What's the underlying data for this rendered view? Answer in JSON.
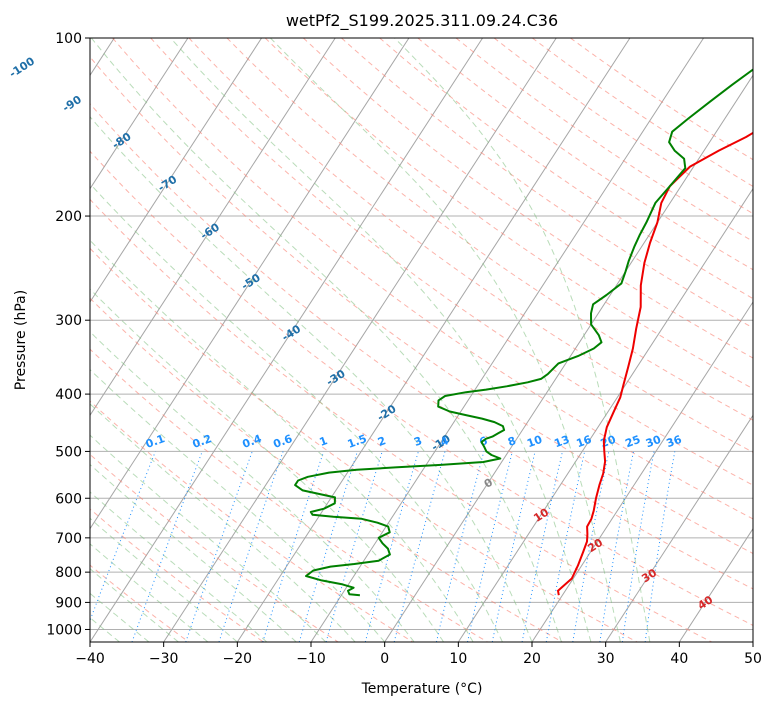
{
  "chart_data": {
    "type": "line",
    "title": "wetPf2_S199.2025.311.09.24.C36",
    "xlabel": "Temperature (°C)",
    "ylabel": "Pressure (hPa)",
    "xlim": [
      -40,
      50
    ],
    "ylim": [
      1050,
      100
    ],
    "y_scale": "log",
    "grid": true,
    "x_ticks": [
      "−40",
      "−30",
      "−20",
      "−10",
      "0",
      "10",
      "20",
      "30",
      "40",
      "50"
    ],
    "y_ticks": [
      "100",
      "200",
      "300",
      "400",
      "500",
      "600",
      "700",
      "800",
      "900",
      "1000"
    ],
    "isotherm_labels": [
      "-100",
      "-90",
      "-80",
      "-70",
      "-60",
      "-50",
      "-40",
      "-30",
      "-20",
      "-10",
      "0",
      "10",
      "20",
      "30",
      "40"
    ],
    "mixing_ratio_labels": [
      "0.1",
      "0.2",
      "0.4",
      "0.6",
      "1",
      "1.5",
      "2",
      "3",
      "4",
      "6",
      "8",
      "10",
      "13",
      "16",
      "20",
      "25",
      "30",
      "36"
    ],
    "colors": {
      "temperature": "#ee0000",
      "dewpoint": "#008000",
      "isotherm_label": "#1f6fa8",
      "isotherm_label_warm": "#d62728",
      "mixing_ratio": "#1e90ff",
      "dry_adiabat": "#fa8072",
      "moist_adiabat": "#7fbf7f",
      "zero_isotherm": "#888888"
    },
    "series": [
      {
        "key": "temperature",
        "points": [
          [
            19.5,
            875
          ],
          [
            19.0,
            860
          ],
          [
            19.8,
            820
          ],
          [
            19.5,
            780
          ],
          [
            19.0,
            740
          ],
          [
            18.6,
            710
          ],
          [
            18.0,
            690
          ],
          [
            17.3,
            670
          ],
          [
            17.2,
            650
          ],
          [
            16.8,
            630
          ],
          [
            16.0,
            600
          ],
          [
            15.3,
            570
          ],
          [
            14.8,
            545
          ],
          [
            14.0,
            520
          ],
          [
            13.0,
            500
          ],
          [
            12.0,
            480
          ],
          [
            11.2,
            455
          ],
          [
            10.8,
            430
          ],
          [
            10.4,
            405
          ],
          [
            9.7,
            385
          ],
          [
            8.8,
            360
          ],
          [
            7.8,
            335
          ],
          [
            6.5,
            310
          ],
          [
            5.2,
            285
          ],
          [
            3.3,
            262
          ],
          [
            1.8,
            240
          ],
          [
            0.8,
            222
          ],
          [
            0.0,
            205
          ],
          [
            -1.2,
            190
          ],
          [
            -1.5,
            178
          ],
          [
            -0.5,
            165
          ],
          [
            2.0,
            155
          ],
          [
            4.5,
            147
          ],
          [
            7.0,
            137
          ],
          [
            9.0,
            126
          ],
          [
            10.5,
            115
          ],
          [
            12.5,
            108
          ],
          [
            14.8,
            100
          ]
        ]
      },
      {
        "key": "dewpoint",
        "points": [
          [
            -7.5,
            875
          ],
          [
            -9.0,
            872
          ],
          [
            -9.5,
            860
          ],
          [
            -9.0,
            850
          ],
          [
            -11.0,
            838
          ],
          [
            -14.0,
            826
          ],
          [
            -16.5,
            812
          ],
          [
            -16.0,
            795
          ],
          [
            -14.0,
            783
          ],
          [
            -11.0,
            775
          ],
          [
            -8.0,
            765
          ],
          [
            -7.0,
            747
          ],
          [
            -7.8,
            730
          ],
          [
            -9.0,
            715
          ],
          [
            -10.0,
            700
          ],
          [
            -9.0,
            685
          ],
          [
            -9.7,
            670
          ],
          [
            -11.5,
            660
          ],
          [
            -14.0,
            650
          ],
          [
            -18.0,
            645
          ],
          [
            -21.0,
            640
          ],
          [
            -21.5,
            633
          ],
          [
            -20.0,
            625
          ],
          [
            -19.0,
            612
          ],
          [
            -19.5,
            598
          ],
          [
            -22.0,
            590
          ],
          [
            -24.5,
            582
          ],
          [
            -26.0,
            570
          ],
          [
            -26.0,
            560
          ],
          [
            -25.0,
            552
          ],
          [
            -22.5,
            543
          ],
          [
            -19.0,
            537
          ],
          [
            -14.0,
            532
          ],
          [
            -8.0,
            527
          ],
          [
            -2.5,
            521
          ],
          [
            -0.5,
            514
          ],
          [
            -2.0,
            507
          ],
          [
            -3.0,
            500
          ],
          [
            -3.8,
            490
          ],
          [
            -4.5,
            482
          ],
          [
            -4.2,
            476
          ],
          [
            -3.5,
            472
          ],
          [
            -3.0,
            466
          ],
          [
            -2.5,
            460
          ],
          [
            -3.0,
            453
          ],
          [
            -4.5,
            446
          ],
          [
            -6.5,
            440
          ],
          [
            -9.0,
            434
          ],
          [
            -11.5,
            428
          ],
          [
            -13.5,
            420
          ],
          [
            -14.0,
            410
          ],
          [
            -13.5,
            403
          ],
          [
            -11.0,
            397
          ],
          [
            -8.5,
            393
          ],
          [
            -6.0,
            388
          ],
          [
            -3.5,
            382
          ],
          [
            -2.0,
            377
          ],
          [
            -1.5,
            370
          ],
          [
            -1.0,
            355
          ],
          [
            1.0,
            345
          ],
          [
            2.5,
            335
          ],
          [
            3.0,
            327
          ],
          [
            2.0,
            318
          ],
          [
            0.0,
            305
          ],
          [
            -1.0,
            292
          ],
          [
            -1.5,
            282
          ],
          [
            -0.5,
            272
          ],
          [
            0.5,
            260
          ],
          [
            0.0,
            248
          ],
          [
            -0.5,
            238
          ],
          [
            -1.0,
            225
          ],
          [
            -1.3,
            215
          ],
          [
            -1.5,
            205
          ],
          [
            -2.0,
            190
          ],
          [
            -1.5,
            178
          ],
          [
            -1.0,
            166
          ],
          [
            -2.0,
            160
          ],
          [
            -4.0,
            155
          ],
          [
            -5.5,
            150
          ],
          [
            -6.0,
            144
          ],
          [
            -5.0,
            137
          ],
          [
            -3.5,
            128
          ],
          [
            -2.0,
            120
          ],
          [
            -0.5,
            113
          ],
          [
            1.2,
            105
          ],
          [
            2.0,
            100
          ]
        ]
      }
    ]
  }
}
